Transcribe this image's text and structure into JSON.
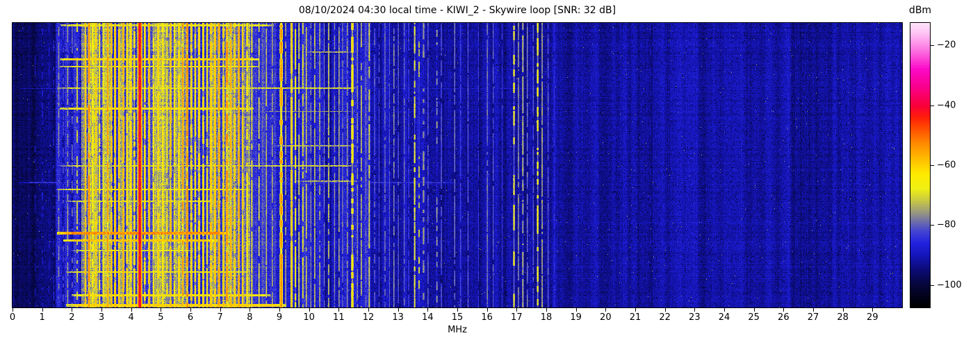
{
  "figure": {
    "title": "08/10/2024 04:30 local time - KIWI_2 - Skywire loop [SNR: 32 dB]",
    "xlabel": "MHz",
    "colorbar_label": "dBm"
  },
  "chart_data": {
    "type": "heatmap",
    "subtype": "radio-spectrogram-waterfall",
    "title": "08/10/2024 04:30 local time - KIWI_2 - Skywire loop [SNR: 32 dB]",
    "xlabel": "MHz",
    "x_range": [
      0,
      30
    ],
    "value_units": "dBm",
    "value_domain": [
      -107.5,
      -12.5
    ],
    "x_ticks": [
      {
        "v": 0,
        "label": "0"
      },
      {
        "v": 1,
        "label": "1"
      },
      {
        "v": 2,
        "label": "2"
      },
      {
        "v": 3,
        "label": "3"
      },
      {
        "v": 4,
        "label": "4"
      },
      {
        "v": 5,
        "label": "5"
      },
      {
        "v": 6,
        "label": "6"
      },
      {
        "v": 7,
        "label": "7"
      },
      {
        "v": 8,
        "label": "8"
      },
      {
        "v": 9,
        "label": "9"
      },
      {
        "v": 10,
        "label": "10"
      },
      {
        "v": 11,
        "label": "11"
      },
      {
        "v": 12,
        "label": "12"
      },
      {
        "v": 13,
        "label": "13"
      },
      {
        "v": 14,
        "label": "14"
      },
      {
        "v": 15,
        "label": "15"
      },
      {
        "v": 16,
        "label": "16"
      },
      {
        "v": 17,
        "label": "17"
      },
      {
        "v": 18,
        "label": "18"
      },
      {
        "v": 19,
        "label": "19"
      },
      {
        "v": 20,
        "label": "20"
      },
      {
        "v": 21,
        "label": "21"
      },
      {
        "v": 22,
        "label": "22"
      },
      {
        "v": 23,
        "label": "23"
      },
      {
        "v": 24,
        "label": "24"
      },
      {
        "v": 25,
        "label": "25"
      },
      {
        "v": 26,
        "label": "26"
      },
      {
        "v": 27,
        "label": "27"
      },
      {
        "v": 28,
        "label": "28"
      },
      {
        "v": 29,
        "label": "29"
      }
    ],
    "colorbar": {
      "label": "dBm",
      "ticks": [
        {
          "v": -20,
          "label": "−20"
        },
        {
          "v": -40,
          "label": "−40"
        },
        {
          "v": -60,
          "label": "−60"
        },
        {
          "v": -80,
          "label": "−80"
        },
        {
          "v": -100,
          "label": "−100"
        }
      ]
    },
    "colormap_stops": [
      [
        0.0,
        [
          0,
          0,
          0
        ]
      ],
      [
        0.079,
        [
          6,
          6,
          60
        ]
      ],
      [
        0.132,
        [
          12,
          12,
          120
        ]
      ],
      [
        0.184,
        [
          22,
          22,
          190
        ]
      ],
      [
        0.226,
        [
          35,
          35,
          225
        ]
      ],
      [
        0.268,
        [
          70,
          70,
          210
        ]
      ],
      [
        0.3,
        [
          110,
          110,
          170
        ]
      ],
      [
        0.33,
        [
          150,
          150,
          130
        ]
      ],
      [
        0.374,
        [
          200,
          200,
          70
        ]
      ],
      [
        0.416,
        [
          240,
          240,
          20
        ]
      ],
      [
        0.468,
        [
          255,
          235,
          0
        ]
      ],
      [
        0.52,
        [
          255,
          190,
          0
        ]
      ],
      [
        0.574,
        [
          255,
          140,
          0
        ]
      ],
      [
        0.626,
        [
          255,
          80,
          0
        ]
      ],
      [
        0.668,
        [
          255,
          30,
          10
        ]
      ],
      [
        0.71,
        [
          250,
          0,
          60
        ]
      ],
      [
        0.774,
        [
          250,
          0,
          140
        ]
      ],
      [
        0.837,
        [
          252,
          10,
          200
        ]
      ],
      [
        0.9,
        [
          253,
          110,
          225
        ]
      ],
      [
        0.963,
        [
          254,
          195,
          245
        ]
      ],
      [
        1.0,
        [
          255,
          230,
          252
        ]
      ]
    ],
    "seed": 20240810,
    "noise_bands": [
      {
        "f0": 0.0,
        "f1": 1.45,
        "base": -96,
        "cvar": 2.5,
        "nz": 4.5,
        "rv": 1.0
      },
      {
        "f0": 1.45,
        "f1": 2.3,
        "base": -88,
        "cvar": 5.0,
        "nz": 5.0,
        "rv": 1.5
      },
      {
        "f0": 2.3,
        "f1": 8.0,
        "base": -79,
        "cvar": 8.0,
        "nz": 6.0,
        "rv": 2.2
      },
      {
        "f0": 8.0,
        "f1": 8.9,
        "base": -86,
        "cvar": 5.0,
        "nz": 5.0,
        "rv": 1.5
      },
      {
        "f0": 8.9,
        "f1": 9.9,
        "base": -87,
        "cvar": 5.0,
        "nz": 5.0,
        "rv": 1.5
      },
      {
        "f0": 9.9,
        "f1": 12.1,
        "base": -88.5,
        "cvar": 4.5,
        "nz": 5.0,
        "rv": 1.2
      },
      {
        "f0": 12.1,
        "f1": 14.6,
        "base": -91,
        "cvar": 3.5,
        "nz": 4.5,
        "rv": 1.0
      },
      {
        "f0": 14.6,
        "f1": 18.4,
        "base": -92,
        "cvar": 3.0,
        "nz": 4.5,
        "rv": 1.0
      },
      {
        "f0": 18.4,
        "f1": 30.0,
        "base": -91.5,
        "cvar": 2.5,
        "nz": 4.5,
        "rv": 1.0
      }
    ],
    "signals": [
      {
        "f": 0.75,
        "p": -89,
        "duty": 0.35
      },
      {
        "f": 1.0,
        "p": -87,
        "duty": 0.4
      },
      {
        "f": 1.22,
        "p": -88,
        "duty": 0.35
      },
      {
        "f": 1.38,
        "p": -86,
        "duty": 0.4
      },
      {
        "f": 1.55,
        "p": -76,
        "duty": 0.6
      },
      {
        "f": 1.7,
        "p": -81,
        "duty": 0.5
      },
      {
        "f": 1.85,
        "p": -74,
        "duty": 0.6
      },
      {
        "f": 2.0,
        "p": -78,
        "duty": 0.55
      },
      {
        "f": 2.17,
        "p": -70,
        "duty": 0.65
      },
      {
        "f": 2.45,
        "p": -57
      },
      {
        "f": 2.57,
        "p": -50
      },
      {
        "f": 2.68,
        "p": -62
      },
      {
        "f": 2.8,
        "p": -58
      },
      {
        "f": 2.92,
        "p": -61
      },
      {
        "f": 3.05,
        "p": -64
      },
      {
        "f": 3.2,
        "p": -53
      },
      {
        "f": 3.32,
        "p": -57
      },
      {
        "f": 3.45,
        "p": -56
      },
      {
        "f": 3.58,
        "p": -57
      },
      {
        "f": 3.72,
        "p": -55
      },
      {
        "f": 3.85,
        "p": -60
      },
      {
        "f": 3.98,
        "p": -58
      },
      {
        "f": 4.1,
        "p": -62
      },
      {
        "f": 4.28,
        "p": -40,
        "w": 0.09,
        "duty": 1
      },
      {
        "f": 4.45,
        "p": -60
      },
      {
        "f": 4.6,
        "p": -55
      },
      {
        "f": 4.75,
        "p": -62
      },
      {
        "f": 4.9,
        "p": -58
      },
      {
        "f": 5.05,
        "p": -61
      },
      {
        "f": 5.2,
        "p": -63
      },
      {
        "f": 5.32,
        "p": -55
      },
      {
        "f": 5.45,
        "p": -62
      },
      {
        "f": 5.6,
        "p": -58
      },
      {
        "f": 5.73,
        "p": -53
      },
      {
        "f": 5.88,
        "p": -50
      },
      {
        "f": 6.02,
        "p": -58
      },
      {
        "f": 6.15,
        "p": -61
      },
      {
        "f": 6.28,
        "p": -57
      },
      {
        "f": 6.42,
        "p": -60
      },
      {
        "f": 6.55,
        "p": -62
      },
      {
        "f": 6.68,
        "p": -55
      },
      {
        "f": 6.82,
        "p": -55
      },
      {
        "f": 6.95,
        "p": -53
      },
      {
        "f": 7.1,
        "p": -57
      },
      {
        "f": 7.22,
        "p": -50
      },
      {
        "f": 7.35,
        "p": -55
      },
      {
        "f": 7.48,
        "p": -58
      },
      {
        "f": 7.62,
        "p": -52
      },
      {
        "f": 7.75,
        "p": -58
      },
      {
        "f": 7.9,
        "p": -62
      },
      {
        "f": 8.06,
        "p": -68
      },
      {
        "f": 8.3,
        "p": -70
      },
      {
        "f": 8.55,
        "p": -72
      },
      {
        "f": 8.75,
        "p": -74
      },
      {
        "f": 9.05,
        "p": -52,
        "w": 0.07,
        "duty": 0.7
      },
      {
        "f": 9.2,
        "p": -74
      },
      {
        "f": 9.4,
        "p": -57,
        "duty": 0.9
      },
      {
        "f": 9.53,
        "p": -66
      },
      {
        "f": 9.65,
        "p": -70
      },
      {
        "f": 9.78,
        "p": -68
      },
      {
        "f": 9.9,
        "p": -72
      },
      {
        "f": 10.05,
        "p": -76
      },
      {
        "f": 10.18,
        "p": -72
      },
      {
        "f": 10.35,
        "p": -74
      },
      {
        "f": 10.5,
        "p": -78
      },
      {
        "f": 10.65,
        "p": -72
      },
      {
        "f": 10.85,
        "p": -76
      },
      {
        "f": 11.0,
        "p": -74
      },
      {
        "f": 11.12,
        "p": -78
      },
      {
        "f": 11.28,
        "p": -76
      },
      {
        "f": 11.45,
        "p": -62,
        "w": 0.07,
        "duty": 0.55
      },
      {
        "f": 11.62,
        "p": -76
      },
      {
        "f": 11.75,
        "p": -72
      },
      {
        "f": 11.9,
        "p": -78
      },
      {
        "f": 12.02,
        "p": -70
      },
      {
        "f": 12.2,
        "p": -80
      },
      {
        "f": 12.35,
        "p": -82
      },
      {
        "f": 12.55,
        "p": -78
      },
      {
        "f": 12.7,
        "p": -80
      },
      {
        "f": 12.85,
        "p": -76
      },
      {
        "f": 13.0,
        "p": -80
      },
      {
        "f": 13.2,
        "p": -78
      },
      {
        "f": 13.35,
        "p": -82
      },
      {
        "f": 13.55,
        "p": -68,
        "duty": 0.8
      },
      {
        "f": 13.7,
        "p": -70,
        "duty": 0.3
      },
      {
        "f": 13.85,
        "p": -76,
        "w": 0.08,
        "duty": 0.6
      },
      {
        "f": 14.0,
        "p": -80
      },
      {
        "f": 14.3,
        "p": -74,
        "duty": 0.4
      },
      {
        "f": 14.45,
        "p": -80
      },
      {
        "f": 14.9,
        "p": -78
      },
      {
        "f": 15.1,
        "p": -82
      },
      {
        "f": 15.35,
        "p": -80
      },
      {
        "f": 15.7,
        "p": -84
      },
      {
        "f": 16.0,
        "p": -78
      },
      {
        "f": 16.2,
        "p": -80
      },
      {
        "f": 16.5,
        "p": -84
      },
      {
        "f": 16.9,
        "p": -66,
        "duty": 0.5
      },
      {
        "f": 17.05,
        "p": -76
      },
      {
        "f": 17.2,
        "p": -72
      },
      {
        "f": 17.35,
        "p": -78
      },
      {
        "f": 17.55,
        "p": -80
      },
      {
        "f": 17.7,
        "p": -64,
        "duty": 0.55
      },
      {
        "f": 17.85,
        "p": -74
      },
      {
        "f": 18.05,
        "p": -80
      },
      {
        "f": 18.25,
        "p": -84
      },
      {
        "f": 19.2,
        "p": -88,
        "duty": 0.3
      },
      {
        "f": 20.1,
        "p": -90,
        "duty": 0.3
      },
      {
        "f": 21.5,
        "p": -88,
        "duty": 0.25
      },
      {
        "f": 23.0,
        "p": -90,
        "duty": 0.25
      },
      {
        "f": 24.8,
        "p": -90,
        "duty": 0.25
      },
      {
        "f": 26.5,
        "p": -90,
        "duty": 0.2
      },
      {
        "f": 28.2,
        "p": -90,
        "duty": 0.2
      }
    ],
    "events": [
      {
        "yf": 0.004,
        "h": 3,
        "f0": 1.6,
        "f1": 8.8,
        "level": -66
      },
      {
        "yf": 0.1,
        "h": 2,
        "f0": 9.8,
        "f1": 11.6,
        "level": -73
      },
      {
        "yf": 0.125,
        "h": 3,
        "f0": 1.6,
        "f1": 8.3,
        "level": -60
      },
      {
        "yf": 0.152,
        "h": 2,
        "f0": 1.6,
        "f1": 8.3,
        "level": -64
      },
      {
        "yf": 0.228,
        "h": 2,
        "f0": 1.5,
        "f1": 11.6,
        "level": -68
      },
      {
        "yf": 0.23,
        "h": 1,
        "f0": 0.1,
        "f1": 18.0,
        "level": -87
      },
      {
        "yf": 0.298,
        "h": 3,
        "f0": 1.6,
        "f1": 8.1,
        "level": -62
      },
      {
        "yf": 0.31,
        "h": 1,
        "f0": 8.3,
        "f1": 11.6,
        "level": -74
      },
      {
        "yf": 0.43,
        "h": 2,
        "f0": 8.8,
        "f1": 11.6,
        "level": -73
      },
      {
        "yf": 0.5,
        "h": 2,
        "f0": 1.6,
        "f1": 11.6,
        "level": -70
      },
      {
        "yf": 0.555,
        "h": 2,
        "f0": 9.5,
        "f1": 11.7,
        "level": -72
      },
      {
        "yf": 0.56,
        "h": 2,
        "f0": 0.2,
        "f1": 15.0,
        "level": -84
      },
      {
        "yf": 0.585,
        "h": 2,
        "f0": 1.5,
        "f1": 8.0,
        "level": -66
      },
      {
        "yf": 0.625,
        "h": 2,
        "f0": 1.8,
        "f1": 7.0,
        "level": -68
      },
      {
        "yf": 0.737,
        "h": 4,
        "f0": 1.5,
        "f1": 7.3,
        "level": -52
      },
      {
        "yf": 0.762,
        "h": 3,
        "f0": 1.7,
        "f1": 6.9,
        "level": -58
      },
      {
        "yf": 0.8,
        "h": 2,
        "f0": 2.0,
        "f1": 6.2,
        "level": -68
      },
      {
        "yf": 0.875,
        "h": 2,
        "f0": 1.8,
        "f1": 8.0,
        "level": -64
      },
      {
        "yf": 0.955,
        "h": 3,
        "f0": 2.0,
        "f1": 8.7,
        "level": -62
      },
      {
        "yf": 0.99,
        "h": 4,
        "f0": 1.8,
        "f1": 9.2,
        "level": -60
      }
    ]
  },
  "layout_colors": {
    "background": "#ffffff",
    "axis": "#000000",
    "text": "#000000"
  }
}
